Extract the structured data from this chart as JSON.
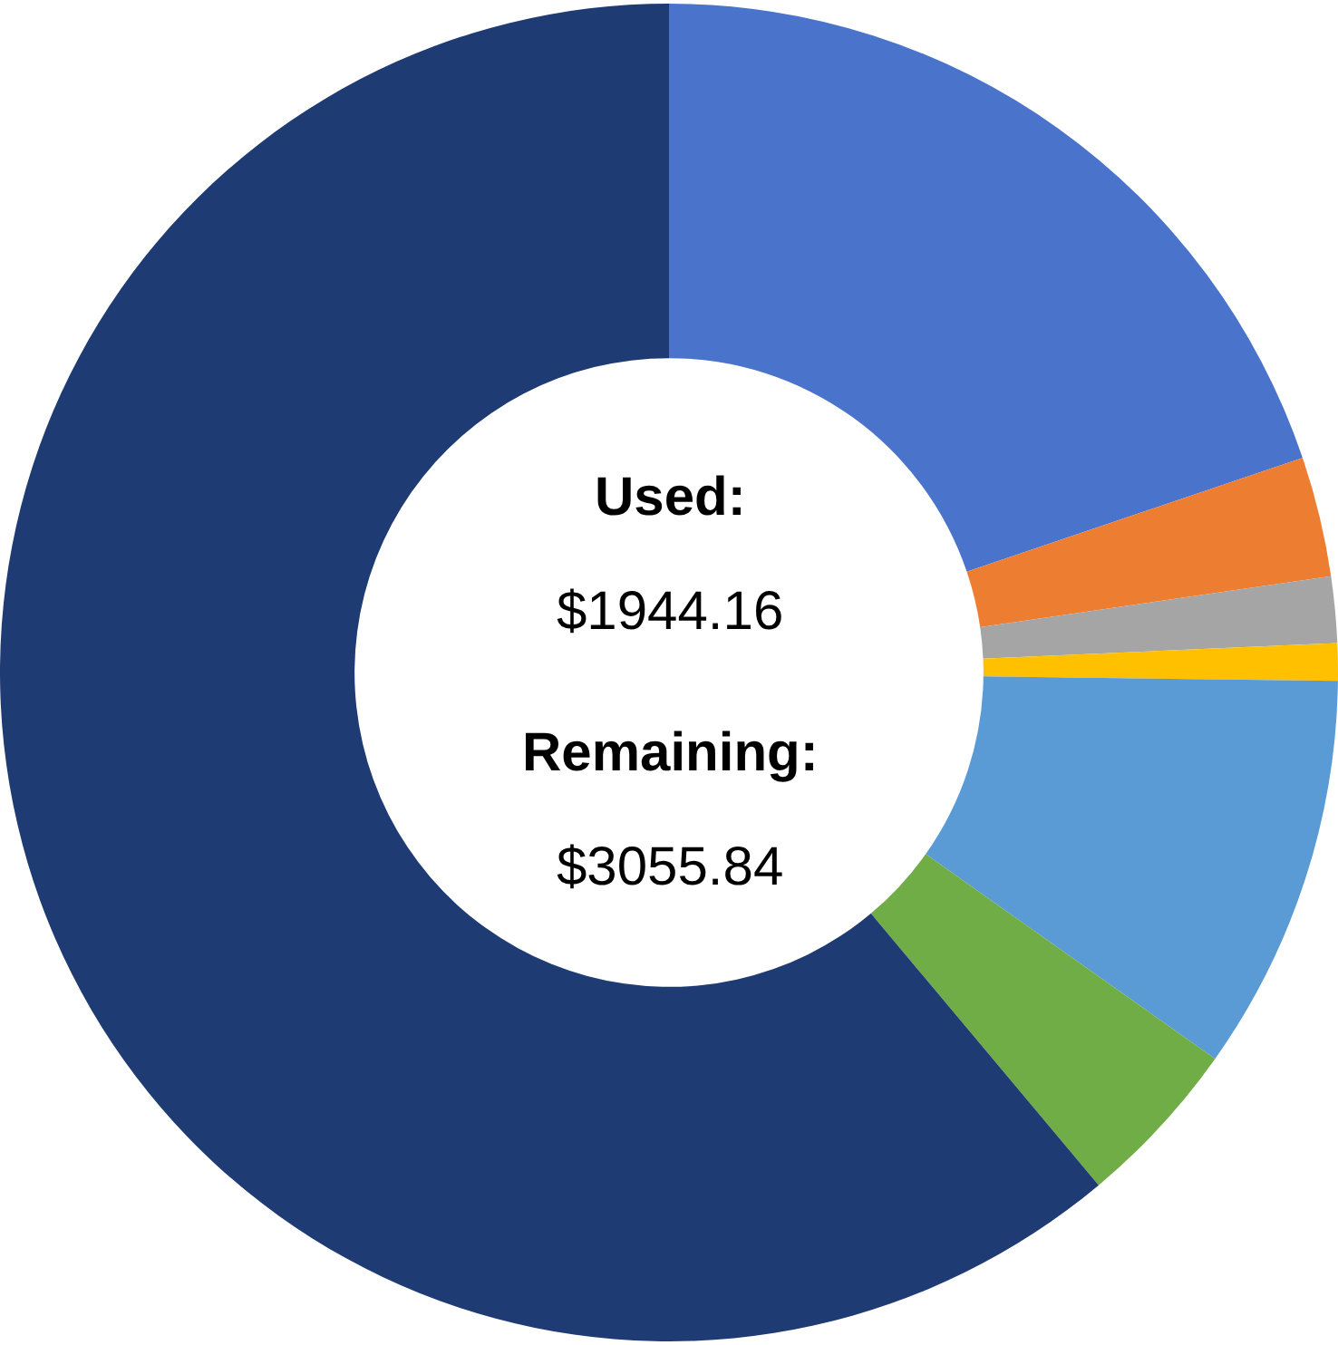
{
  "chart_data": {
    "type": "donut",
    "categories": [
      null,
      null,
      null,
      null,
      null,
      null,
      null
    ],
    "values": [
      19.8,
      2.9,
      1.6,
      0.9,
      9.6,
      4.1,
      61.1
    ],
    "colors": [
      "#4a74cb",
      "#ed7d31",
      "#a5a5a5",
      "#ffc000",
      "#5b9bd5",
      "#70ad47",
      "#1f3b73"
    ],
    "annotations": [
      "Used:",
      "$1944.16",
      "Remaining:",
      "$3055.84"
    ],
    "legend": false
  }
}
